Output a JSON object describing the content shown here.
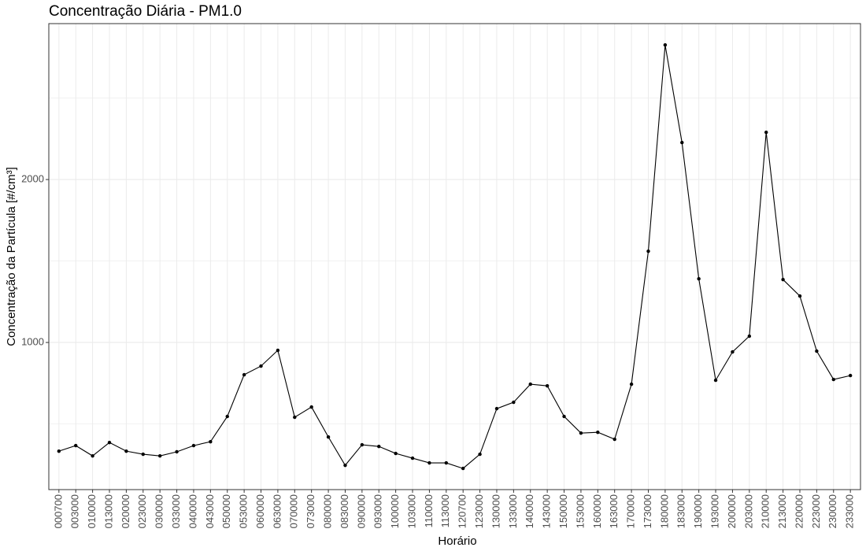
{
  "chart_data": {
    "type": "line",
    "title": "Concentração Diária - PM1.0",
    "x_label": "Horário",
    "y_label": "Concentração da Partícula [#/cm³]",
    "categories": [
      "000700",
      "003000",
      "010000",
      "013000",
      "020000",
      "023000",
      "030000",
      "033000",
      "040000",
      "043000",
      "050000",
      "053000",
      "060000",
      "063000",
      "070000",
      "073000",
      "080000",
      "083000",
      "090000",
      "093000",
      "100000",
      "103000",
      "110000",
      "113000",
      "120700",
      "123000",
      "130000",
      "133000",
      "140000",
      "143000",
      "150000",
      "153000",
      "160000",
      "163000",
      "170000",
      "173000",
      "180000",
      "183000",
      "190000",
      "193000",
      "200000",
      "203000",
      "210000",
      "213000",
      "220000",
      "223000",
      "230000",
      "233000"
    ],
    "series": [
      {
        "color": "#000000",
        "values": [
          333,
          367,
          304,
          386,
          333,
          314,
          304,
          329,
          367,
          391,
          546,
          802,
          855,
          952,
          541,
          604,
          420,
          246,
          372,
          362,
          319,
          290,
          261,
          261,
          227,
          314,
          594,
          633,
          744,
          734,
          546,
          444,
          449,
          406,
          744,
          1560,
          2826,
          2227,
          1391,
          768,
          942,
          1039,
          2290,
          1386,
          1285,
          947,
          773,
          797
        ]
      }
    ],
    "ylim": [
      97,
      2957
    ],
    "yticks": [
      1000,
      2000
    ],
    "grid": true
  }
}
